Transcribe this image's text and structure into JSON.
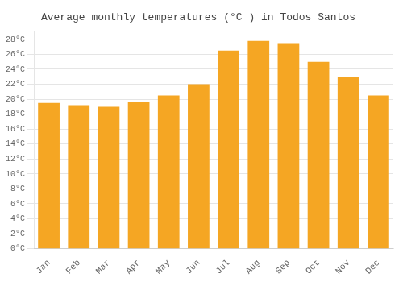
{
  "chart_data": {
    "type": "bar",
    "title": "Average monthly temperatures (°C ) in Todos Santos",
    "categories": [
      "Jan",
      "Feb",
      "Mar",
      "Apr",
      "May",
      "Jun",
      "Jul",
      "Aug",
      "Sep",
      "Oct",
      "Nov",
      "Dec"
    ],
    "values": [
      19.5,
      19.2,
      19.0,
      19.7,
      20.5,
      22.0,
      26.5,
      27.8,
      27.5,
      25.0,
      23.0,
      20.5
    ],
    "color": "#F5A623",
    "ylim": [
      0,
      29
    ],
    "yticks": [
      {
        "value": 0,
        "label": "0°C"
      },
      {
        "value": 2,
        "label": "2°C"
      },
      {
        "value": 4,
        "label": "4°C"
      },
      {
        "value": 6,
        "label": "6°C"
      },
      {
        "value": 8,
        "label": "8°C"
      },
      {
        "value": 10,
        "label": "10°C"
      },
      {
        "value": 12,
        "label": "12°C"
      },
      {
        "value": 14,
        "label": "14°C"
      },
      {
        "value": 16,
        "label": "16°C"
      },
      {
        "value": 18,
        "label": "18°C"
      },
      {
        "value": 20,
        "label": "20°C"
      },
      {
        "value": 22,
        "label": "22°C"
      },
      {
        "value": 24,
        "label": "24°C"
      },
      {
        "value": 26,
        "label": "26°C"
      },
      {
        "value": 28,
        "label": "28°C"
      }
    ],
    "grid": true
  }
}
